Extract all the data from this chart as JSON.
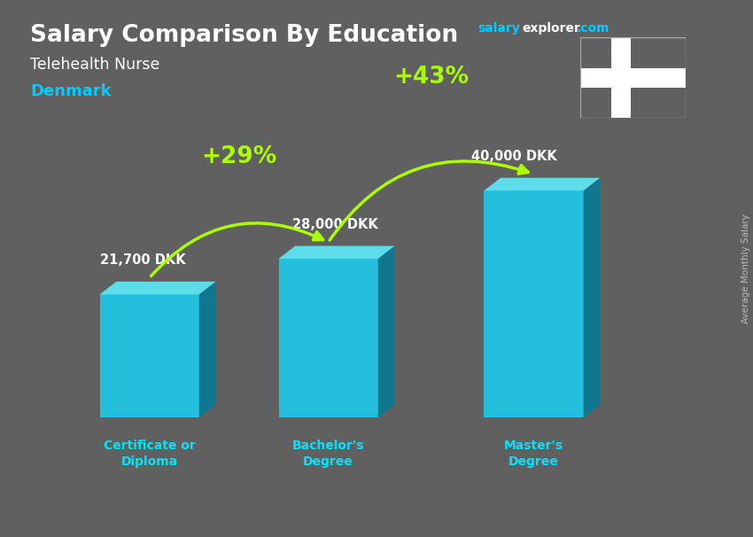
{
  "title": "Salary Comparison By Education",
  "subtitle": "Telehealth Nurse",
  "country": "Denmark",
  "categories": [
    "Certificate or\nDiploma",
    "Bachelor's\nDegree",
    "Master's\nDegree"
  ],
  "values": [
    21700,
    28000,
    40000
  ],
  "value_labels": [
    "21,700 DKK",
    "28,000 DKK",
    "40,000 DKK"
  ],
  "pct_labels": [
    "+29%",
    "+43%"
  ],
  "bar_color_front": "#1ec8e8",
  "bar_color_top": "#5de8f8",
  "bar_color_side": "#0a7a96",
  "bg_color": "#606060",
  "title_color": "#ffffff",
  "subtitle_color": "#ffffff",
  "country_color": "#00ccff",
  "value_label_color": "#ffffff",
  "pct_color": "#aaff00",
  "xlabel_color": "#00e5ff",
  "right_label": "Average Monthly Salary",
  "right_label_color": "#bbbbbb",
  "flag_red": "#c60c30",
  "website_salary_color": "#00ccff",
  "website_explorer_color": "#ffffff",
  "website_com_color": "#00ccff"
}
